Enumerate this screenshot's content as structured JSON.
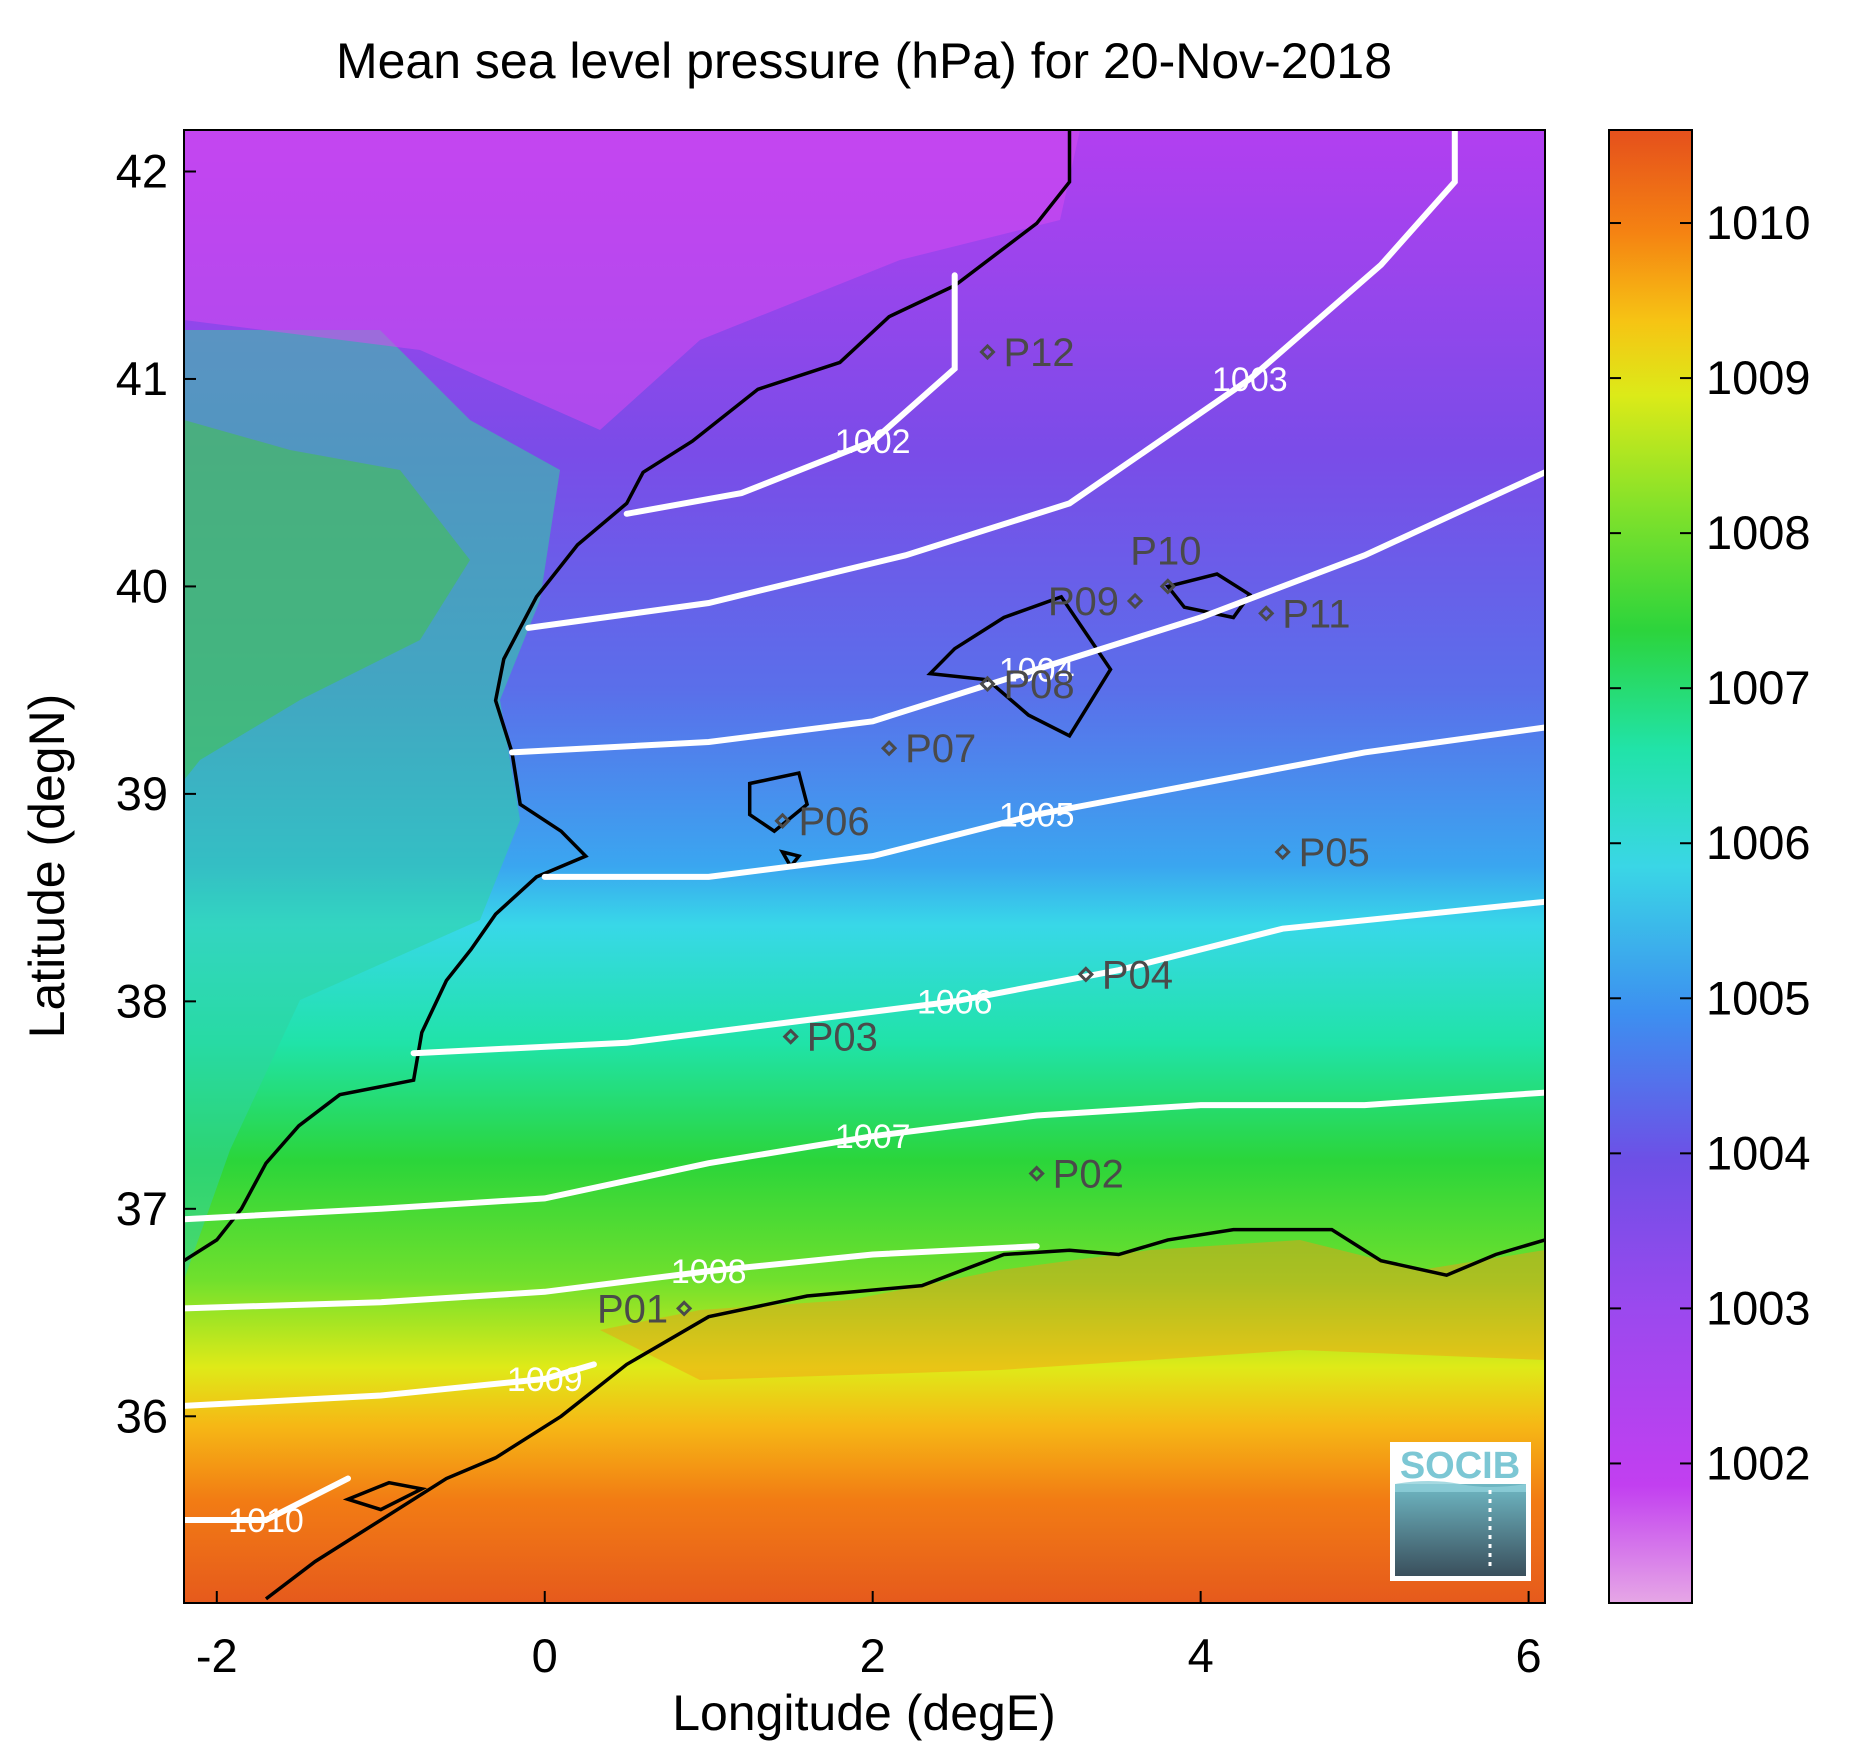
{
  "title": "Mean sea level pressure (hPa) for 20-Nov-2018",
  "x_axis": {
    "label": "Longitude (degE)",
    "range": [
      -2.2,
      6.1
    ],
    "ticks": [
      {
        "value": -2,
        "label": "-2"
      },
      {
        "value": 0,
        "label": "0"
      },
      {
        "value": 2,
        "label": "2"
      },
      {
        "value": 4,
        "label": "4"
      },
      {
        "value": 6,
        "label": "6"
      }
    ]
  },
  "y_axis": {
    "label": "Latitude (degN)",
    "range": [
      35.1,
      42.2
    ],
    "ticks": [
      {
        "value": 36,
        "label": "36"
      },
      {
        "value": 37,
        "label": "37"
      },
      {
        "value": 38,
        "label": "38"
      },
      {
        "value": 39,
        "label": "39"
      },
      {
        "value": 40,
        "label": "40"
      },
      {
        "value": 41,
        "label": "41"
      },
      {
        "value": 42,
        "label": "42"
      }
    ]
  },
  "colorbar": {
    "range": [
      1001.1,
      1010.6
    ],
    "ticks": [
      {
        "value": 1002,
        "label": "1002"
      },
      {
        "value": 1003,
        "label": "1003"
      },
      {
        "value": 1004,
        "label": "1004"
      },
      {
        "value": 1005,
        "label": "1005"
      },
      {
        "value": 1006,
        "label": "1006"
      },
      {
        "value": 1007,
        "label": "1007"
      },
      {
        "value": 1008,
        "label": "1008"
      },
      {
        "value": 1009,
        "label": "1009"
      },
      {
        "value": 1010,
        "label": "1010"
      }
    ],
    "colors": [
      "#e6a7e6",
      "#c23ff0",
      "#9b49ee",
      "#6e4fe6",
      "#3d8ff0",
      "#3ad6e6",
      "#21e3a8",
      "#2cd43c",
      "#7fe12b",
      "#dcea18",
      "#f6c414",
      "#f58312",
      "#e5501c"
    ]
  },
  "chart_data": {
    "type": "heatmap",
    "variable": "Mean sea level pressure",
    "units": "hPa",
    "date": "20-Nov-2018",
    "isobars": [
      {
        "value": 1002,
        "label": "1002",
        "points": [
          [
            0.5,
            40.35
          ],
          [
            1.2,
            40.45
          ],
          [
            2.0,
            40.7
          ],
          [
            2.5,
            41.05
          ],
          [
            2.5,
            41.5
          ]
        ]
      },
      {
        "value": 1003,
        "label": "1003",
        "points": [
          [
            -0.1,
            39.8
          ],
          [
            1.0,
            39.92
          ],
          [
            2.2,
            40.15
          ],
          [
            3.2,
            40.4
          ],
          [
            4.3,
            41.0
          ],
          [
            5.1,
            41.55
          ],
          [
            5.55,
            41.95
          ],
          [
            5.55,
            42.2
          ]
        ]
      },
      {
        "value": 1004,
        "label": "1004",
        "points": [
          [
            -0.2,
            39.2
          ],
          [
            1.0,
            39.25
          ],
          [
            2.0,
            39.35
          ],
          [
            3.0,
            39.6
          ],
          [
            4.0,
            39.85
          ],
          [
            5.0,
            40.15
          ],
          [
            6.1,
            40.55
          ]
        ]
      },
      {
        "value": 1005,
        "label": "1005",
        "points": [
          [
            0,
            38.6
          ],
          [
            1.0,
            38.6
          ],
          [
            2.0,
            38.7
          ],
          [
            3.0,
            38.9
          ],
          [
            4.0,
            39.05
          ],
          [
            5.0,
            39.2
          ],
          [
            6.1,
            39.32
          ]
        ]
      },
      {
        "value": 1006,
        "label": "1006",
        "points": [
          [
            -0.8,
            37.75
          ],
          [
            0.5,
            37.8
          ],
          [
            1.5,
            37.9
          ],
          [
            2.5,
            38.0
          ],
          [
            3.5,
            38.15
          ],
          [
            4.5,
            38.35
          ],
          [
            6.1,
            38.48
          ]
        ]
      },
      {
        "value": 1007,
        "label": "1007",
        "points": [
          [
            -2.2,
            36.95
          ],
          [
            -1.0,
            37.0
          ],
          [
            0.0,
            37.05
          ],
          [
            1.0,
            37.22
          ],
          [
            2.0,
            37.35
          ],
          [
            3.0,
            37.45
          ],
          [
            4.0,
            37.5
          ],
          [
            5.0,
            37.5
          ],
          [
            6.1,
            37.56
          ]
        ]
      },
      {
        "value": 1008,
        "label": "1008",
        "points": [
          [
            -2.2,
            36.52
          ],
          [
            -1.0,
            36.55
          ],
          [
            0.0,
            36.6
          ],
          [
            1.0,
            36.7
          ],
          [
            2.0,
            36.78
          ],
          [
            3.0,
            36.82
          ]
        ]
      },
      {
        "value": 1009,
        "label": "1009",
        "points": [
          [
            -2.2,
            36.05
          ],
          [
            -1.0,
            36.1
          ],
          [
            0.0,
            36.18
          ],
          [
            0.3,
            36.25
          ]
        ]
      },
      {
        "value": 1010,
        "label": "1010",
        "points": [
          [
            -2.2,
            35.5
          ],
          [
            -1.7,
            35.5
          ],
          [
            -1.2,
            35.7
          ]
        ]
      }
    ],
    "stations": [
      {
        "name": "P01",
        "lon": 0.85,
        "lat": 36.52,
        "label_side": "left"
      },
      {
        "name": "P02",
        "lon": 3.0,
        "lat": 37.17,
        "label_side": "right"
      },
      {
        "name": "P03",
        "lon": 1.5,
        "lat": 37.83,
        "label_side": "right"
      },
      {
        "name": "P04",
        "lon": 3.3,
        "lat": 38.13,
        "label_side": "right"
      },
      {
        "name": "P05",
        "lon": 4.5,
        "lat": 38.72,
        "label_side": "right"
      },
      {
        "name": "P06",
        "lon": 1.45,
        "lat": 38.87,
        "label_side": "right"
      },
      {
        "name": "P07",
        "lon": 2.1,
        "lat": 39.22,
        "label_side": "right"
      },
      {
        "name": "P08",
        "lon": 2.7,
        "lat": 39.53,
        "label_side": "right"
      },
      {
        "name": "P09",
        "lon": 3.6,
        "lat": 39.93,
        "label_side": "left"
      },
      {
        "name": "P10",
        "lon": 3.8,
        "lat": 40.0,
        "label_side": "above"
      },
      {
        "name": "P11",
        "lon": 4.4,
        "lat": 39.87,
        "label_side": "right"
      },
      {
        "name": "P12",
        "lon": 2.7,
        "lat": 41.13,
        "label_side": "right"
      }
    ]
  },
  "logo": {
    "text": "SOCIB"
  }
}
